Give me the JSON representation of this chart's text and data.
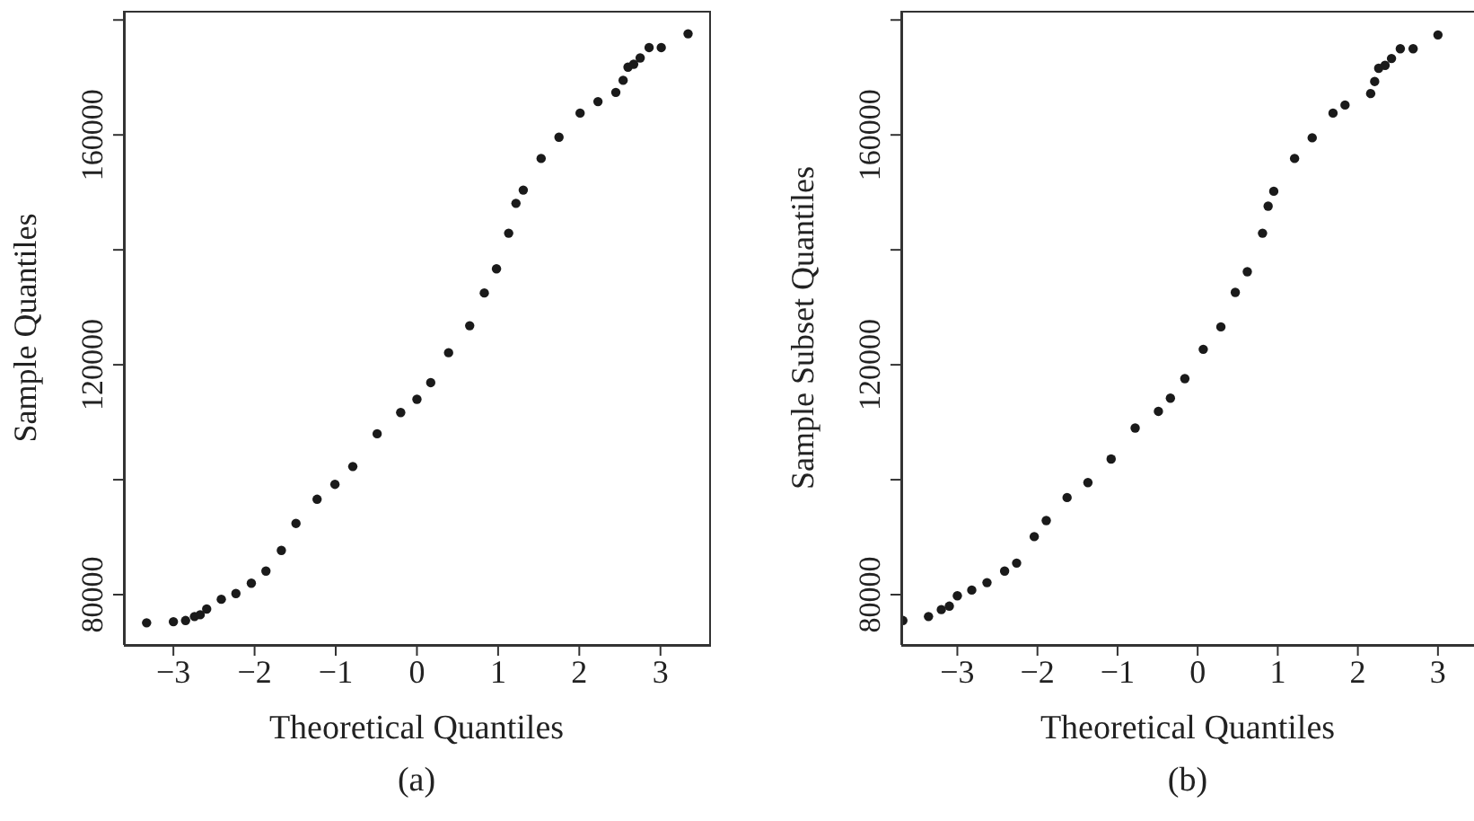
{
  "chart_data": [
    {
      "type": "scatter",
      "xlabel": "Theoretical Quantiles",
      "ylabel": "Sample Quantiles",
      "annotations": [
        "(a)"
      ],
      "marker": "circle",
      "grid": false,
      "legend": false,
      "xlim": [
        -3.61,
        3.6
      ],
      "xticks": [
        -3,
        -2,
        -1,
        0,
        1,
        2,
        3
      ],
      "ylim": [
        71250,
        181600
      ],
      "yticks": [
        80000,
        {
          "value": 100000,
          "label": null
        },
        120000,
        {
          "value": 140000,
          "label": null
        },
        160000,
        {
          "value": 180000,
          "label": null
        }
      ],
      "series": [
        {
          "color": "#1a1a1a",
          "x": [
            -3.33,
            -3.0,
            -2.85,
            -2.74,
            -2.67,
            -2.59,
            -2.41,
            -2.23,
            -2.04,
            -1.86,
            -1.67,
            -1.49,
            -1.23,
            -1.01,
            -0.79,
            -0.49,
            -0.2,
            0,
            0.17,
            0.39,
            0.65,
            0.83,
            0.98,
            1.13,
            1.22,
            1.31,
            1.53,
            1.75,
            2.01,
            2.23,
            2.45,
            2.54,
            2.6,
            2.67,
            2.75,
            2.86,
            3.01,
            3.34
          ],
          "values": [
            75100,
            75300,
            75500,
            76200,
            76500,
            77500,
            79200,
            80200,
            82000,
            84100,
            87700,
            92400,
            96600,
            99200,
            102300,
            108000,
            111700,
            114000,
            116900,
            122100,
            126800,
            132500,
            136700,
            142900,
            148100,
            150400,
            155900,
            159600,
            163800,
            165800,
            167400,
            169500,
            171800,
            172300,
            173400,
            175200,
            175200,
            177600
          ]
        }
      ]
    },
    {
      "type": "scatter",
      "xlabel": "Theoretical Quantiles",
      "ylabel": "Sample Subset Quantiles",
      "annotations": [
        "(b)"
      ],
      "marker": "circle",
      "grid": false,
      "legend": false,
      "xlim": [
        -3.7,
        3.45
      ],
      "xticks": [
        -3,
        -2,
        -1,
        0,
        1,
        2,
        3
      ],
      "ylim": [
        71250,
        181600
      ],
      "yticks": [
        80000,
        {
          "value": 100000,
          "label": null
        },
        120000,
        {
          "value": 140000,
          "label": null
        },
        160000,
        {
          "value": 180000,
          "label": null
        }
      ],
      "series": [
        {
          "color": "#1a1a1a",
          "x": [
            -3.68,
            -3.36,
            -3.2,
            -3.1,
            -3.0,
            -2.82,
            -2.63,
            -2.41,
            -2.26,
            -2.04,
            -1.89,
            -1.63,
            -1.37,
            -1.08,
            -0.78,
            -0.49,
            -0.34,
            -0.16,
            0.07,
            0.29,
            0.47,
            0.62,
            0.81,
            0.88,
            0.95,
            1.21,
            1.43,
            1.69,
            1.84,
            2.16,
            2.21,
            2.26,
            2.34,
            2.42,
            2.53,
            2.69,
            3.0
          ],
          "values": [
            75500,
            76200,
            77400,
            78000,
            79800,
            80800,
            82100,
            84100,
            85500,
            90100,
            92900,
            96900,
            99500,
            103600,
            109000,
            111900,
            114200,
            117600,
            122700,
            126600,
            132600,
            136200,
            142900,
            147600,
            150200,
            155900,
            159500,
            163800,
            165200,
            167200,
            169300,
            171600,
            172100,
            173300,
            175000,
            175000,
            177400
          ]
        }
      ]
    }
  ]
}
